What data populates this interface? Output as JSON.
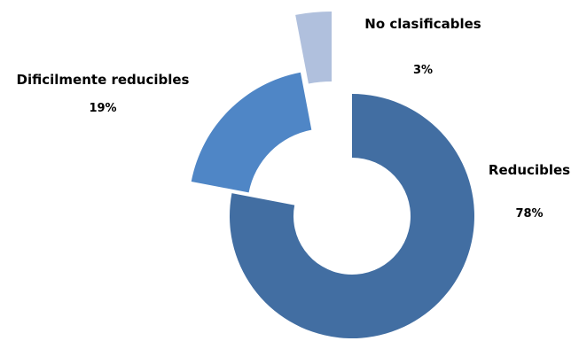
{
  "chart_data": {
    "type": "pie",
    "variant": "exploded-doughnut",
    "categories": [
      "Reducibles",
      "Dificilmente reducibles",
      "No clasificables"
    ],
    "values": [
      78,
      19,
      3
    ],
    "value_labels": [
      "78%",
      "19%",
      "3%"
    ],
    "colors": [
      "#426ea2",
      "#4f86c6",
      "#b0c0dd"
    ],
    "legend": "none",
    "title": ""
  }
}
